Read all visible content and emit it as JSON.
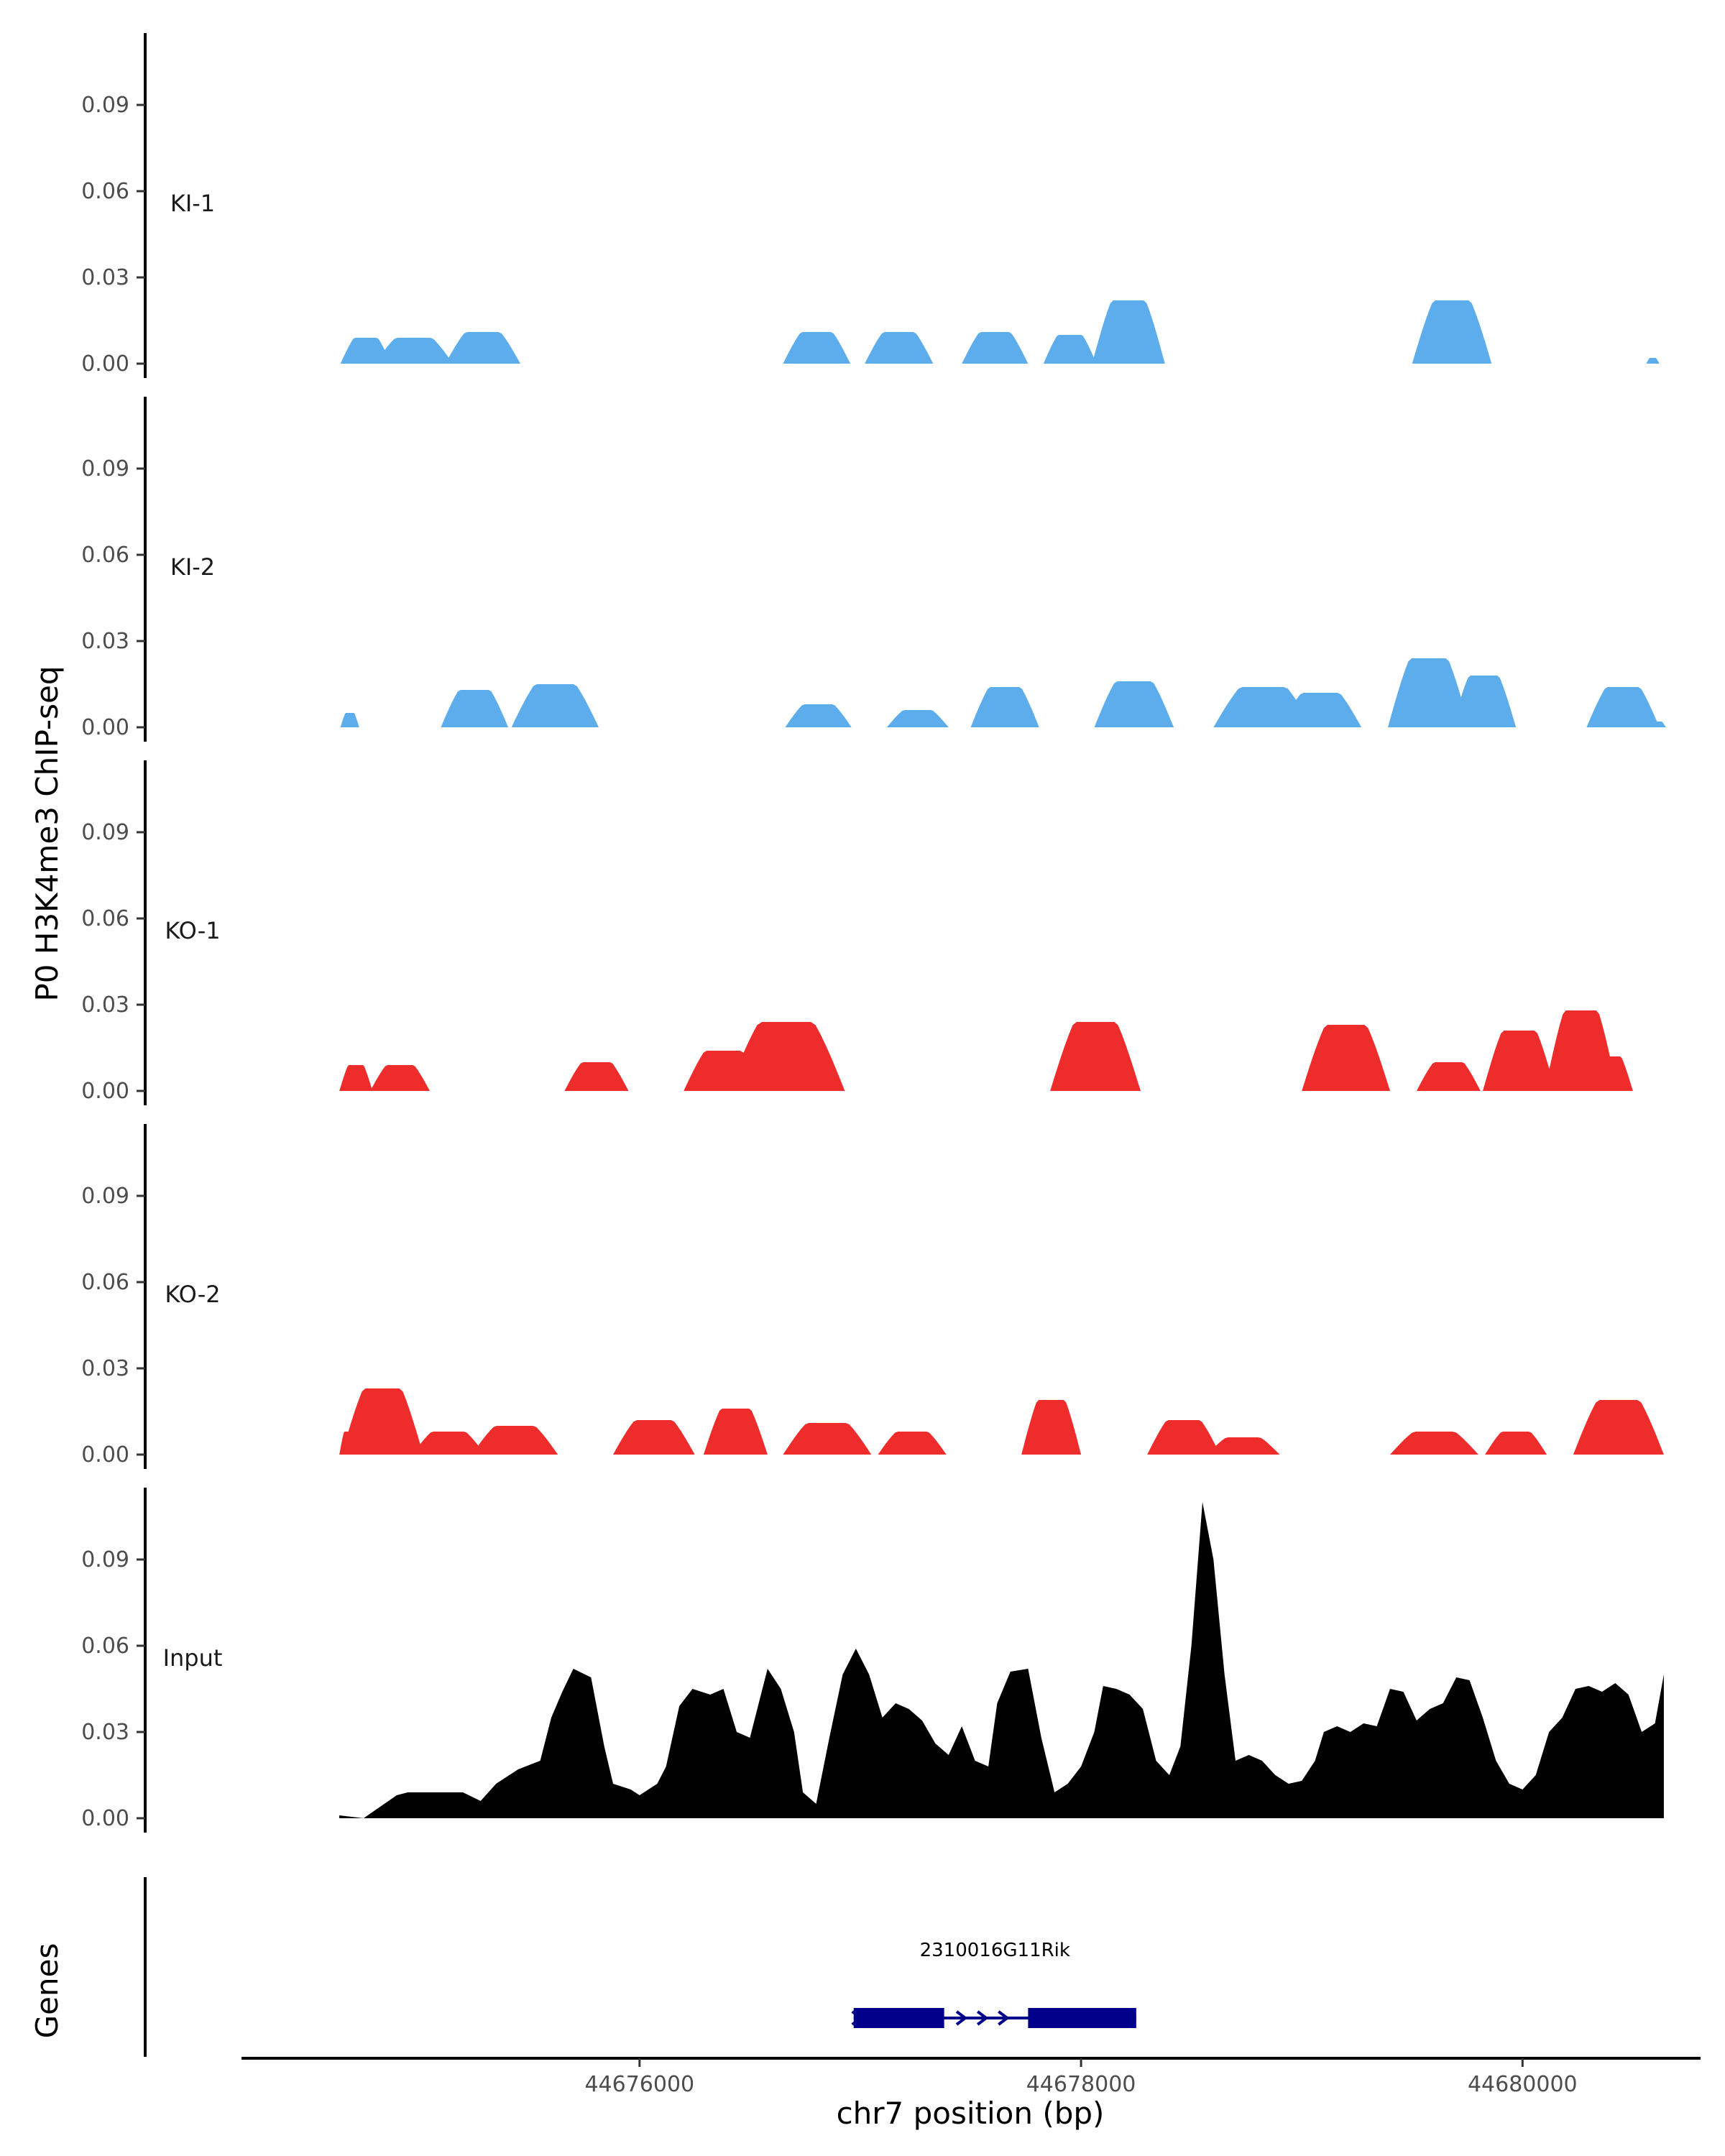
{
  "chart_data": {
    "type": "area",
    "ylabel": "P0 H3K4me3 ChIP-seq",
    "xlabel": "chr7 position (bp)",
    "genes_label": "Genes",
    "xlim": [
      44674200,
      44680800
    ],
    "ylim": [
      0,
      0.11
    ],
    "y_ticks": [
      0.0,
      0.03,
      0.06,
      0.09
    ],
    "y_tick_labels": [
      "0.00",
      "0.03",
      "0.06",
      "0.09"
    ],
    "x_ticks": [
      44676000,
      44678000,
      44680000
    ],
    "x_tick_labels": [
      "44676000",
      "44678000",
      "44680000"
    ],
    "grid": false,
    "colors": {
      "KI": "#5DADEC",
      "KO": "#EE2C2C",
      "Input": "#000000",
      "gene": "#00008B"
    },
    "tracks": [
      {
        "name": "KI-1",
        "color": "#5DADEC",
        "peaks": [
          [
            44674645,
            44674875,
            0.009
          ],
          [
            44674800,
            44675155,
            0.009
          ],
          [
            44675120,
            44675460,
            0.011
          ],
          [
            44676650,
            44676955,
            0.011
          ],
          [
            44677020,
            44677330,
            0.011
          ],
          [
            44677460,
            44677760,
            0.011
          ],
          [
            44677830,
            44678070,
            0.01
          ],
          [
            44678050,
            44678380,
            0.022
          ],
          [
            44679500,
            44679860,
            0.022
          ],
          [
            44680560,
            44680620,
            0.002
          ]
        ]
      },
      {
        "name": "KI-2",
        "color": "#5DADEC",
        "peaks": [
          [
            44674645,
            44674730,
            0.005
          ],
          [
            44675100,
            44675405,
            0.013
          ],
          [
            44675420,
            44675815,
            0.015
          ],
          [
            44676660,
            44676960,
            0.008
          ],
          [
            44677120,
            44677400,
            0.006
          ],
          [
            44677500,
            44677810,
            0.014
          ],
          [
            44678060,
            44678420,
            0.016
          ],
          [
            44678600,
            44679050,
            0.014
          ],
          [
            44678900,
            44679270,
            0.012
          ],
          [
            44679390,
            44679760,
            0.024
          ],
          [
            44679680,
            44679970,
            0.018
          ],
          [
            44680290,
            44680620,
            0.014
          ],
          [
            44680580,
            44680650,
            0.002
          ]
        ]
      },
      {
        "name": "KO-1",
        "color": "#EE2C2C",
        "peaks": [
          [
            44674640,
            44674790,
            0.009
          ],
          [
            44674780,
            44675050,
            0.009
          ],
          [
            44675660,
            44675950,
            0.01
          ],
          [
            44676200,
            44676560,
            0.014
          ],
          [
            44676400,
            44676930,
            0.024
          ],
          [
            44677860,
            44678270,
            0.024
          ],
          [
            44679000,
            44679400,
            0.023
          ],
          [
            44679520,
            44679810,
            0.01
          ],
          [
            44679820,
            44680150,
            0.021
          ],
          [
            44680100,
            44680430,
            0.028
          ],
          [
            44680300,
            44680500,
            0.012
          ]
        ]
      },
      {
        "name": "KO-2",
        "color": "#EE2C2C",
        "peaks": [
          [
            44674640,
            44674720,
            0.008
          ],
          [
            44674650,
            44675020,
            0.023
          ],
          [
            44674970,
            44675300,
            0.008
          ],
          [
            44675240,
            44675630,
            0.01
          ],
          [
            44675880,
            44676250,
            0.012
          ],
          [
            44676290,
            44676580,
            0.016
          ],
          [
            44676650,
            44677050,
            0.011
          ],
          [
            44677080,
            44677390,
            0.008
          ],
          [
            44677730,
            44678000,
            0.019
          ],
          [
            44678300,
            44678630,
            0.012
          ],
          [
            44678570,
            44678900,
            0.006
          ],
          [
            44679400,
            44679800,
            0.008
          ],
          [
            44679830,
            44680110,
            0.008
          ],
          [
            44680230,
            44680640,
            0.019
          ]
        ]
      }
    ],
    "input": {
      "name": "Input",
      "color": "#000000",
      "x": [
        44674640,
        44674750,
        44674900,
        44674950,
        44675050,
        44675100,
        44675200,
        44675280,
        44675350,
        44675450,
        44675550,
        44675600,
        44675650,
        44675700,
        44675780,
        44675840,
        44675880,
        44675960,
        44676000,
        44676080,
        44676120,
        44676180,
        44676240,
        44676320,
        44676380,
        44676440,
        44676500,
        44676580,
        44676640,
        44676700,
        44676740,
        44676800,
        44676860,
        44676920,
        44676980,
        44677040,
        44677100,
        44677160,
        44677220,
        44677280,
        44677340,
        44677400,
        44677460,
        44677520,
        44677580,
        44677620,
        44677680,
        44677760,
        44677820,
        44677880,
        44677940,
        44678000,
        44678060,
        44678100,
        44678160,
        44678220,
        44678280,
        44678340,
        44678400,
        44678450,
        44678500,
        44678550,
        44678600,
        44678650,
        44678700,
        44678760,
        44678820,
        44678880,
        44678940,
        44679000,
        44679060,
        44679100,
        44679160,
        44679220,
        44679280,
        44679340,
        44679400,
        44679460,
        44679520,
        44679580,
        44679640,
        44679700,
        44679760,
        44679820,
        44679880,
        44679940,
        44680000,
        44680060,
        44680120,
        44680180,
        44680240,
        44680300,
        44680360,
        44680420,
        44680480,
        44680540,
        44680600,
        44680640
      ],
      "y": [
        0.001,
        0.0,
        0.008,
        0.009,
        0.009,
        0.009,
        0.009,
        0.006,
        0.012,
        0.017,
        0.02,
        0.035,
        0.044,
        0.052,
        0.049,
        0.025,
        0.012,
        0.01,
        0.008,
        0.012,
        0.018,
        0.039,
        0.045,
        0.043,
        0.045,
        0.03,
        0.028,
        0.052,
        0.045,
        0.03,
        0.009,
        0.005,
        0.028,
        0.05,
        0.059,
        0.05,
        0.035,
        0.04,
        0.038,
        0.034,
        0.026,
        0.022,
        0.032,
        0.02,
        0.018,
        0.04,
        0.051,
        0.052,
        0.028,
        0.009,
        0.012,
        0.018,
        0.03,
        0.046,
        0.045,
        0.043,
        0.038,
        0.02,
        0.015,
        0.025,
        0.06,
        0.11,
        0.09,
        0.05,
        0.02,
        0.022,
        0.02,
        0.015,
        0.012,
        0.013,
        0.02,
        0.03,
        0.032,
        0.03,
        0.033,
        0.032,
        0.045,
        0.044,
        0.034,
        0.038,
        0.04,
        0.049,
        0.048,
        0.035,
        0.02,
        0.012,
        0.01,
        0.015,
        0.03,
        0.035,
        0.045,
        0.046,
        0.044,
        0.047,
        0.043,
        0.03,
        0.033,
        0.05
      ]
    },
    "gene": {
      "name": "2310016G11Rik",
      "start": 44676970,
      "end": 44678250,
      "strand": "+",
      "exons": [
        [
          44676970,
          44677380
        ],
        [
          44677760,
          44678250
        ]
      ]
    }
  }
}
